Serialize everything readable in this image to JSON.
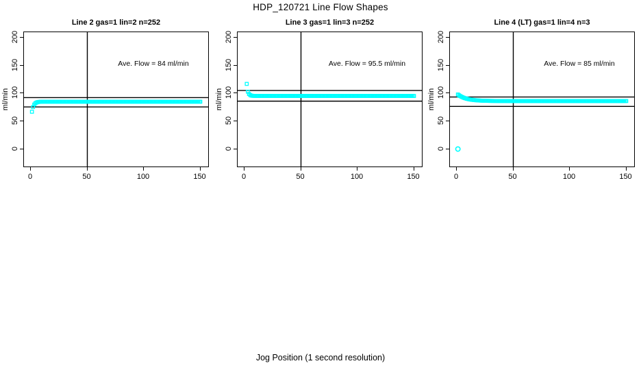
{
  "figure": {
    "title": "HDP_120721  Line Flow Shapes",
    "x_axis_label": "Jog Position (1 second resolution)",
    "y_axis_label": "ml/min"
  },
  "colors": {
    "points": "#00ffff",
    "axis": "#000000",
    "background": "#ffffff"
  },
  "axes": {
    "x_ticks": [
      "0",
      "50",
      "100",
      "150"
    ],
    "x_tick_values": [
      0,
      50,
      100,
      150
    ],
    "y_ticks": [
      "0",
      "50",
      "100",
      "150",
      "200"
    ],
    "y_tick_values": [
      0,
      50,
      100,
      150,
      200
    ],
    "x_range": [
      0,
      150
    ],
    "y_range": [
      0,
      200
    ],
    "vertical_line_x": 50,
    "grid": false
  },
  "chart_data": [
    {
      "type": "scatter",
      "title": "Line 2 gas=1 lin=2 n=252",
      "annotation": "Ave. Flow =  84  ml/min",
      "ave_flow_ml_min": 84,
      "n": 252,
      "marker": "open-square",
      "hlines": [
        92.4,
        75.6
      ],
      "hlines_meaning": "ave flow +/- 10%",
      "outliers": [],
      "curve": {
        "x_start": 1,
        "x_end": 150,
        "y_start": 67,
        "y_plateau": 85,
        "tau": 1.6,
        "description": "flow rises quickly from ~67 at t=1 to plateau ~85 ml/min"
      }
    },
    {
      "type": "scatter",
      "title": "Line 3 gas=1 lin=3 n=252",
      "annotation": "Ave. Flow =  95.5  ml/min",
      "ave_flow_ml_min": 95.5,
      "n": 252,
      "marker": "open-square",
      "hlines": [
        105.1,
        86.0
      ],
      "hlines_meaning": "ave flow +/- 10%",
      "outliers": [
        {
          "x": 2,
          "y": 117,
          "marker": "open-square"
        }
      ],
      "curve": {
        "x_start": 3,
        "x_end": 150,
        "y_start": 103,
        "y_plateau": 95.3,
        "tau": 1.3,
        "description": "one high point ~117, then decays from ~103 to plateau ~95 ml/min"
      }
    },
    {
      "type": "scatter",
      "title": "Line 4 (LT) gas=1 lin=4 n=3",
      "annotation": "Ave. Flow =  85  ml/min",
      "ave_flow_ml_min": 85,
      "n": 3,
      "marker": "open-square",
      "hlines": [
        93.5,
        76.5
      ],
      "hlines_meaning": "ave flow +/- 10%",
      "outliers": [
        {
          "x": 1,
          "y": 0,
          "marker": "open-circle"
        }
      ],
      "curve": {
        "x_start": 1,
        "x_end": 150,
        "y_start": 98,
        "y_plateau": 86.2,
        "tau": 7.5,
        "description": "one point at ~0, flow decays slowly from ~98 to plateau ~86 ml/min"
      }
    }
  ]
}
